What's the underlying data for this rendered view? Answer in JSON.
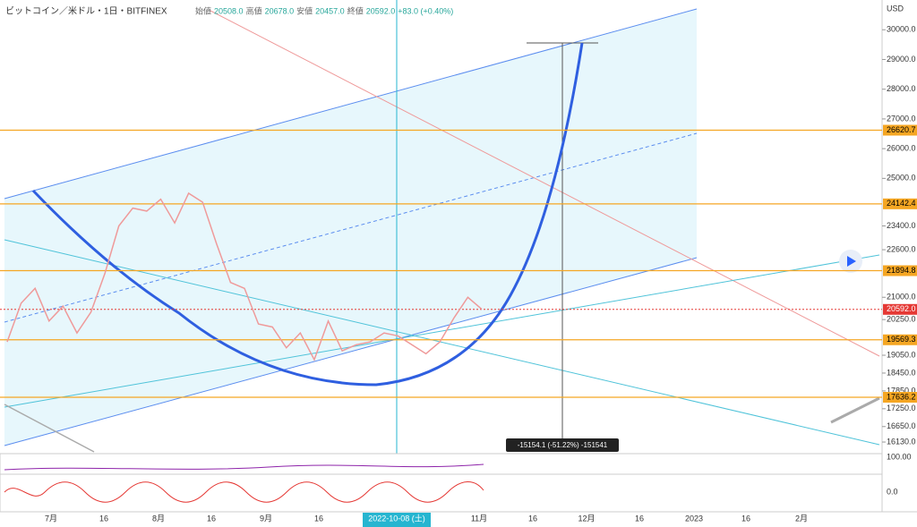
{
  "header": {
    "symbol": "ビットコイン／米ドル・1日・BITFINEX",
    "open_label": "始値",
    "open": "20508.0",
    "high_label": "高値",
    "high": "20678.0",
    "low_label": "安値",
    "low": "20457.0",
    "close_label": "終値",
    "close": "20592.0",
    "change": "+83.0 (+0.40%)"
  },
  "chart_data": {
    "type": "line",
    "currency": "USD",
    "color": "#ef9a9a",
    "closes": [
      19500,
      20800,
      21300,
      20200,
      20700,
      19800,
      20500,
      21800,
      23400,
      24000,
      23900,
      24300,
      23500,
      24500,
      24200,
      22800,
      21500,
      21300,
      20100,
      20000,
      19300,
      19800,
      18900,
      20200,
      19200,
      19400,
      19500,
      19800,
      19700,
      19400,
      19100,
      19500,
      20300,
      21000,
      20600
    ],
    "ylim": [
      15800,
      30700
    ],
    "yticks": [
      {
        "value": 30000,
        "label": "30000.0"
      },
      {
        "value": 29000,
        "label": "29000.0"
      },
      {
        "value": 28000,
        "label": "28000.0"
      },
      {
        "value": 27000,
        "label": "27000.0"
      },
      {
        "value": 26000,
        "label": "26000.0"
      },
      {
        "value": 25000,
        "label": "25000.0"
      },
      {
        "value": 23400,
        "label": "23400.0"
      },
      {
        "value": 22600,
        "label": "22600.0"
      },
      {
        "value": 21000,
        "label": "21000.0"
      },
      {
        "value": 20250,
        "label": "20250.0"
      },
      {
        "value": 19050,
        "label": "19050.0"
      },
      {
        "value": 18450,
        "label": "18450.0"
      },
      {
        "value": 17850,
        "label": "17850.0"
      },
      {
        "value": 17250,
        "label": "17250.0"
      },
      {
        "value": 16650,
        "label": "16650.0"
      },
      {
        "value": 16130,
        "label": "16130.0"
      }
    ],
    "levels": [
      {
        "value": 26620.7,
        "label": "26620.7"
      },
      {
        "value": 24142.4,
        "label": "24142.4"
      },
      {
        "value": 21894.8,
        "label": "21894.8"
      },
      {
        "value": 19569.3,
        "label": "19569.3"
      },
      {
        "value": 17636.2,
        "label": "17636.2"
      }
    ],
    "last_price": {
      "value": 20592.0,
      "label": "20592.0"
    },
    "measure": "-15154.1 (-51.22%) -151541",
    "xlabels": [
      "7月",
      "16",
      "8月",
      "16",
      "9月",
      "16",
      "2022-10-08 (土)",
      "11月",
      "16",
      "12月",
      "16",
      "2023",
      "16",
      "2月"
    ],
    "oscillator_labels": [
      "100.00",
      "0.0"
    ]
  }
}
